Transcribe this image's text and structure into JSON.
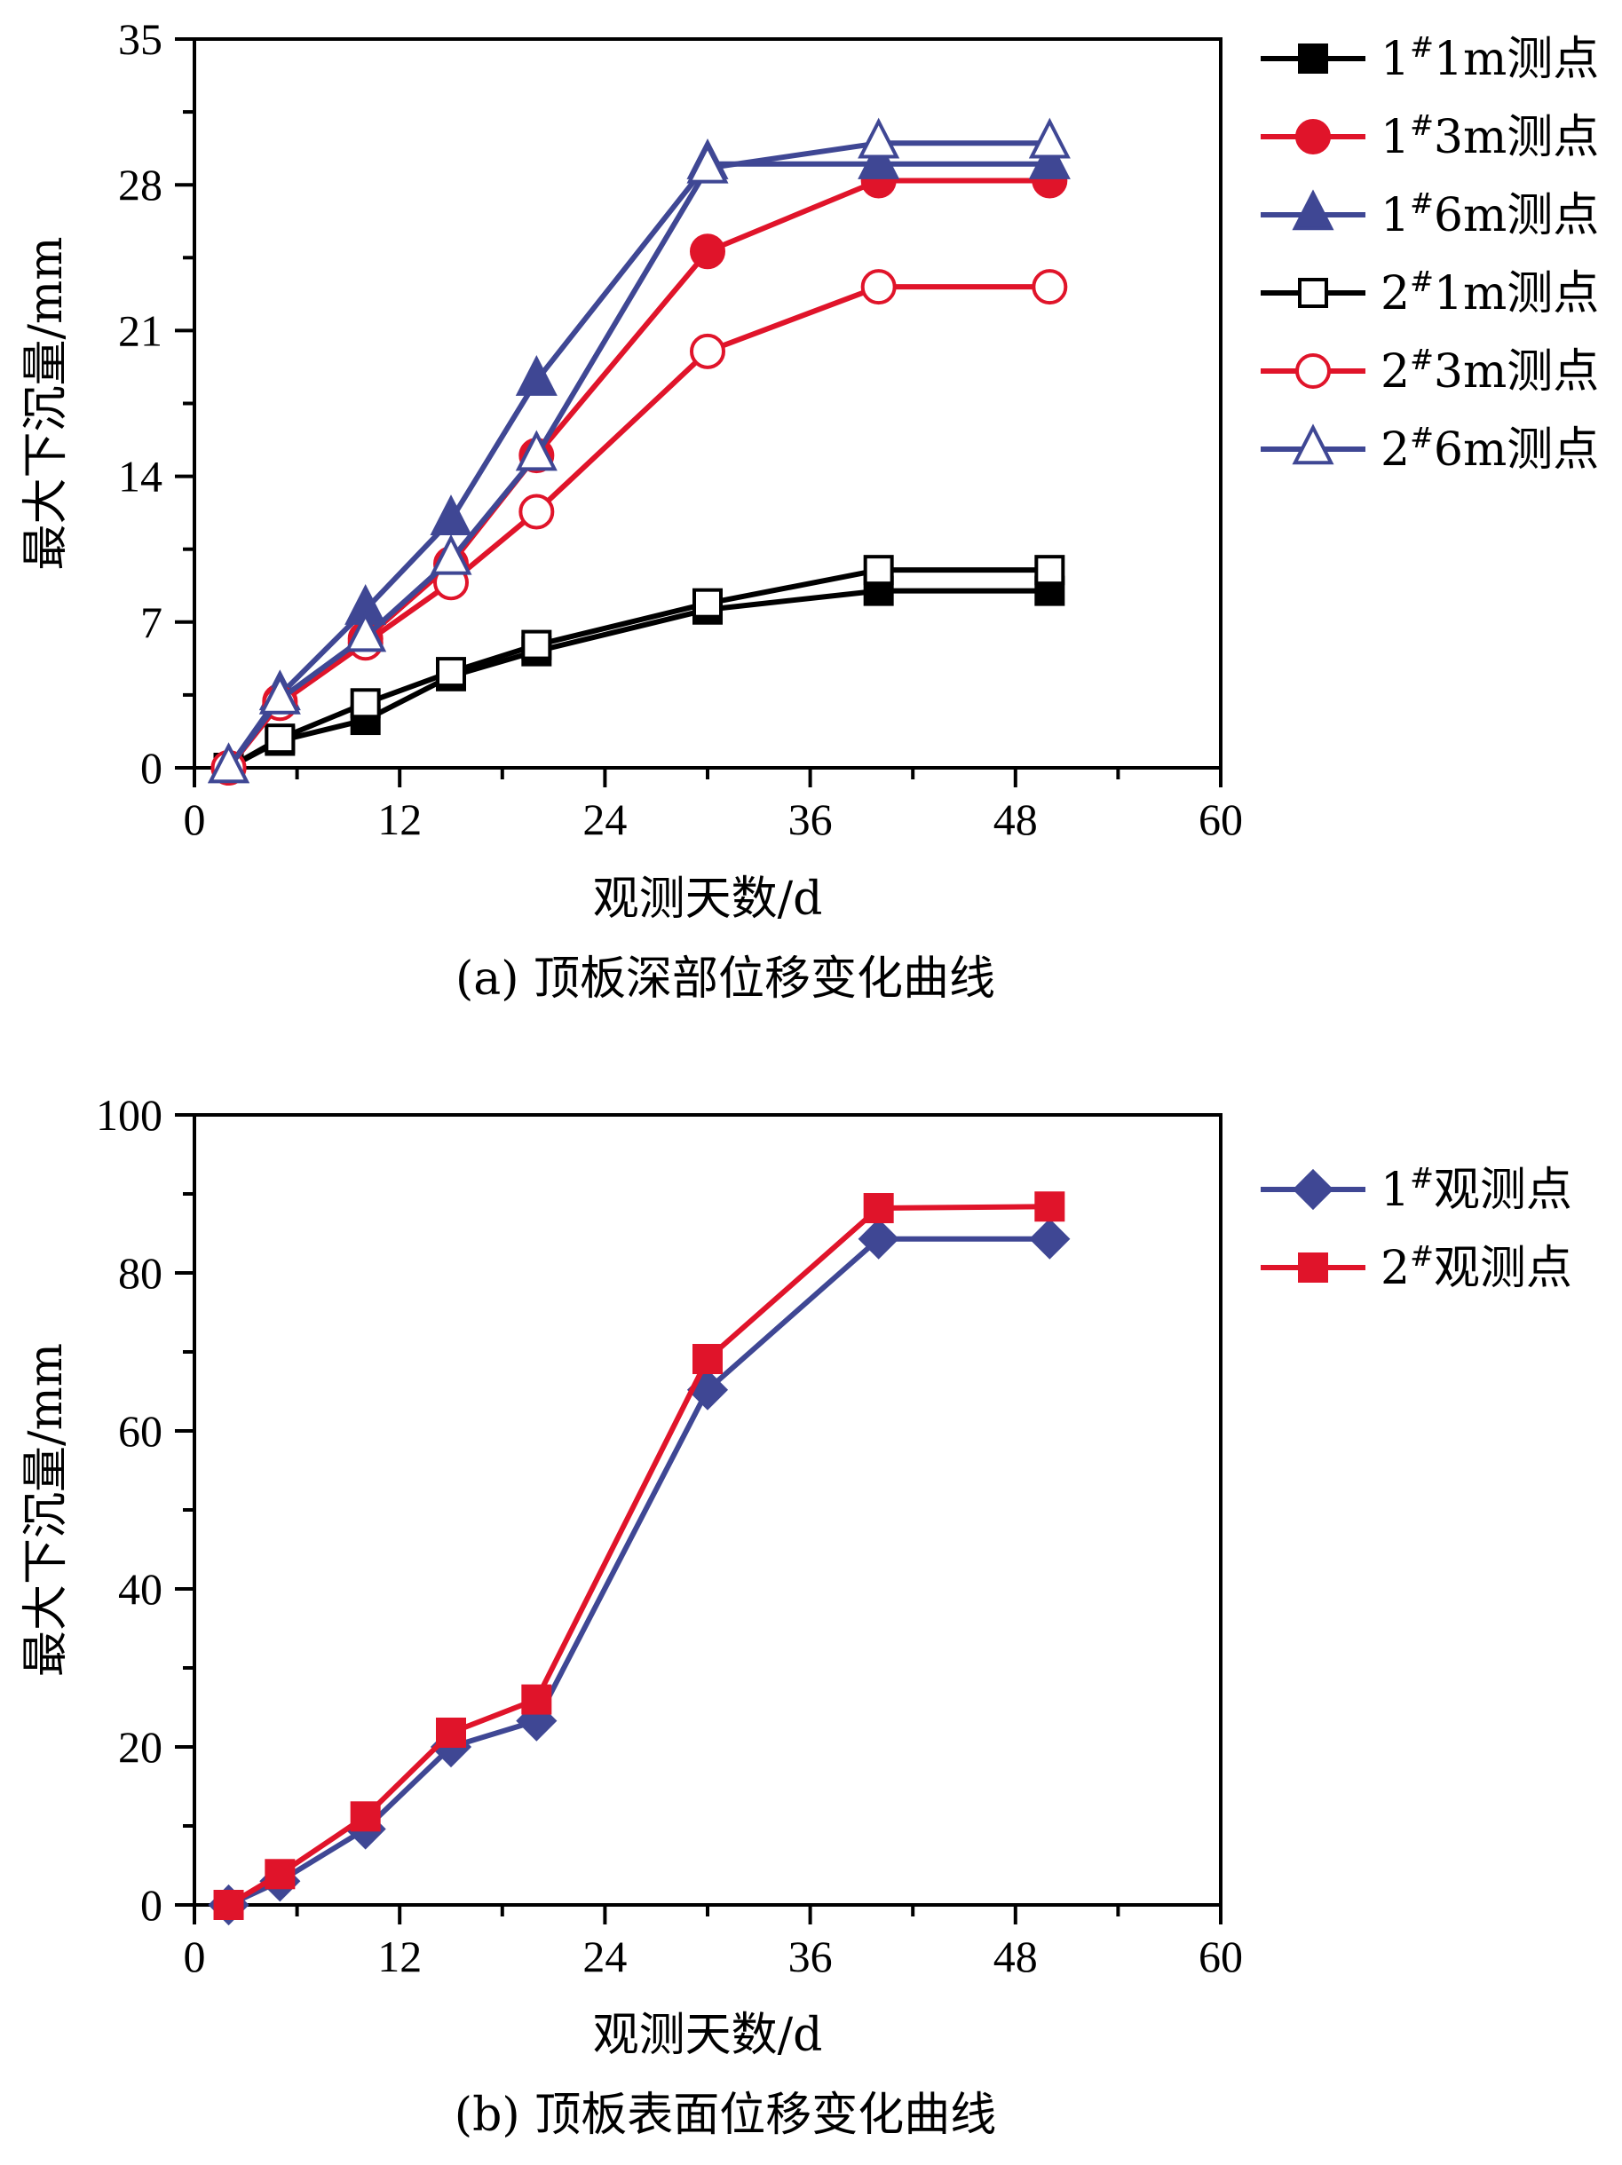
{
  "chart_data": [
    {
      "type": "line",
      "title": "(a) 顶板深部位移变化曲线",
      "xlabel": "观测天数/d",
      "ylabel": "最大下沉量/mm",
      "xlim": [
        0,
        60
      ],
      "ylim": [
        0,
        35
      ],
      "xticks": [
        0,
        12,
        24,
        36,
        48,
        60
      ],
      "yticks": [
        0,
        7,
        14,
        21,
        28,
        35
      ],
      "grid": false,
      "legend_position": "right",
      "x": [
        2,
        5,
        10,
        15,
        20,
        30,
        40,
        50
      ],
      "series": [
        {
          "name": "1#1m测点",
          "label_prefix": "1",
          "label_suffix": "1m测点",
          "color": "#000000",
          "marker": "square",
          "filled": true,
          "values": [
            0,
            1.3,
            2.3,
            4.4,
            5.6,
            7.6,
            8.5,
            8.5
          ]
        },
        {
          "name": "1#3m测点",
          "label_prefix": "1",
          "label_suffix": "3m测点",
          "color": "#e0142a",
          "marker": "circle",
          "filled": true,
          "values": [
            0,
            3.2,
            6.2,
            9.8,
            15.0,
            24.8,
            28.2,
            28.2
          ]
        },
        {
          "name": "1#6m测点",
          "label_prefix": "1",
          "label_suffix": "6m测点",
          "color": "#3f4794",
          "marker": "triangle",
          "filled": true,
          "values": [
            0,
            3.5,
            7.6,
            11.9,
            18.6,
            29.0,
            29.0,
            29.0
          ]
        },
        {
          "name": "2#1m测点",
          "label_prefix": "2",
          "label_suffix": "1m测点",
          "color": "#000000",
          "marker": "square",
          "filled": false,
          "values": [
            0,
            1.4,
            3.1,
            4.6,
            5.9,
            7.9,
            9.5,
            9.5
          ]
        },
        {
          "name": "2#3m测点",
          "label_prefix": "2",
          "label_suffix": "3m测点",
          "color": "#e0142a",
          "marker": "circle",
          "filled": false,
          "values": [
            0,
            3.1,
            6.0,
            8.9,
            12.3,
            20.0,
            23.1,
            23.1
          ]
        },
        {
          "name": "2#6m测点",
          "label_prefix": "2",
          "label_suffix": "6m测点",
          "color": "#3f4794",
          "marker": "triangle",
          "filled": false,
          "values": [
            0,
            3.3,
            6.3,
            10.0,
            15.0,
            28.8,
            30.0,
            30.0
          ]
        }
      ]
    },
    {
      "type": "line",
      "title": "(b) 顶板表面位移变化曲线",
      "xlabel": "观测天数/d",
      "ylabel": "最大下沉量/mm",
      "xlim": [
        0,
        60
      ],
      "ylim": [
        0,
        100
      ],
      "xticks": [
        0,
        12,
        24,
        36,
        48,
        60
      ],
      "yticks": [
        0,
        20,
        40,
        60,
        80,
        100
      ],
      "grid": false,
      "legend_position": "right",
      "x": [
        2,
        5,
        10,
        15,
        20,
        30,
        40,
        50
      ],
      "series": [
        {
          "name": "1#观测点",
          "label_prefix": "1",
          "label_suffix": "观测点",
          "color": "#3f4794",
          "marker": "diamond",
          "filled": true,
          "values": [
            0,
            3.0,
            9.6,
            20.0,
            23.3,
            65.2,
            84.3,
            84.3
          ]
        },
        {
          "name": "2#观测点",
          "label_prefix": "2",
          "label_suffix": "观测点",
          "color": "#e0142a",
          "marker": "square",
          "filled": true,
          "values": [
            0,
            3.9,
            11.2,
            21.8,
            26.0,
            69.1,
            88.2,
            88.4
          ]
        }
      ]
    }
  ]
}
